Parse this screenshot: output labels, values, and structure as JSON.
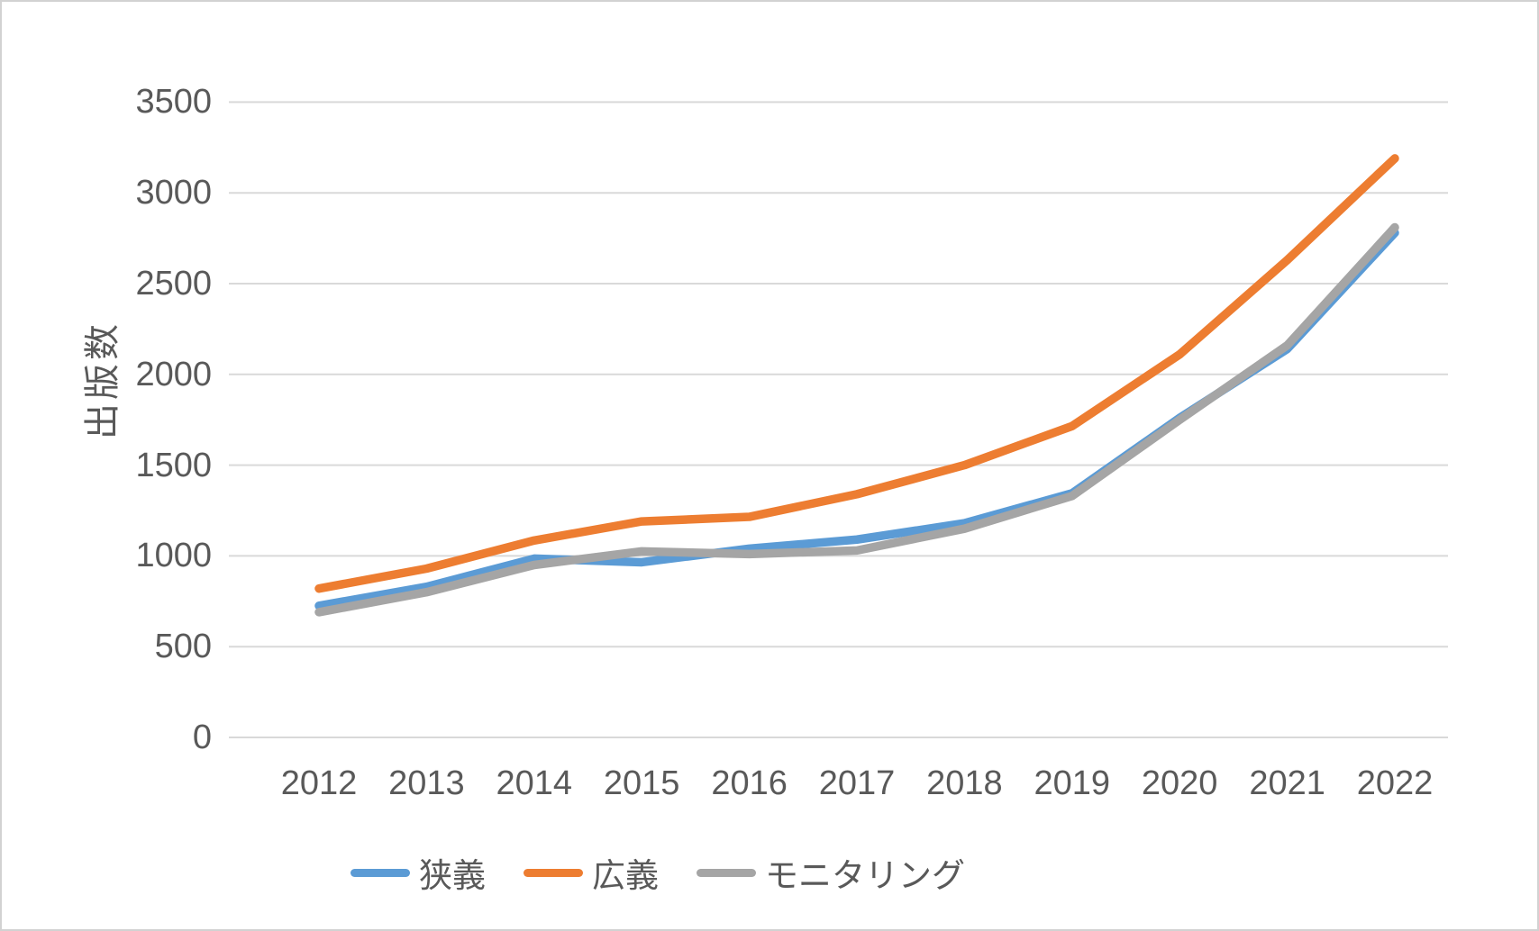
{
  "chart_data": {
    "type": "line",
    "title": "",
    "xlabel": "",
    "ylabel": "出版数",
    "categories": [
      "2012",
      "2013",
      "2014",
      "2015",
      "2016",
      "2017",
      "2018",
      "2019",
      "2020",
      "2021",
      "2022"
    ],
    "series": [
      {
        "name": "狭義",
        "color": "#5B9BD5",
        "values": [
          725,
          830,
          985,
          965,
          1040,
          1090,
          1180,
          1345,
          1760,
          2140,
          2780
        ]
      },
      {
        "name": "広義",
        "color": "#ED7D31",
        "values": [
          820,
          930,
          1085,
          1190,
          1215,
          1340,
          1500,
          1715,
          2110,
          2630,
          3190
        ]
      },
      {
        "name": "モニタリング",
        "color": "#A5A5A5",
        "values": [
          690,
          800,
          950,
          1025,
          1010,
          1030,
          1150,
          1330,
          1750,
          2160,
          2810
        ]
      }
    ],
    "ylim": [
      0,
      3500
    ],
    "ytick_step": 500,
    "ytick_labels": [
      "0",
      "500",
      "1000",
      "1500",
      "2000",
      "2500",
      "3000",
      "3500"
    ],
    "grid": "horizontal",
    "legend_position": "bottom",
    "axis_text_color": "#595959",
    "gridline_color": "#D9D9D9",
    "background_color": "#FFFFFF"
  }
}
